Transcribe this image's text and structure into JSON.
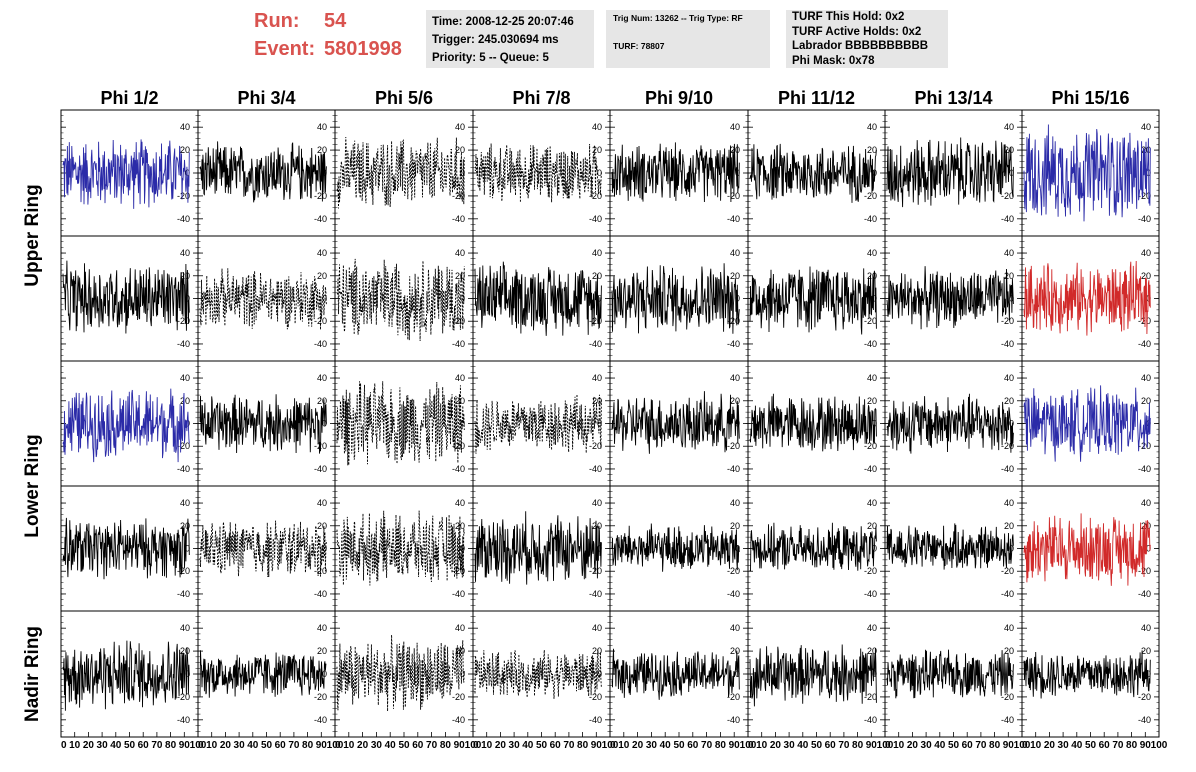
{
  "header": {
    "run_label": "Run:",
    "run_value": "54",
    "event_label": "Event:",
    "event_value": "5801998",
    "accent_color": "#d9534f"
  },
  "info": {
    "time_box": [
      "Time: 2008-12-25 20:07:46",
      "Trigger: 245.030694 ms",
      "Priority: 5 -- Queue: 5"
    ],
    "trig_box": [
      "Trig Num: 13262 -- Trig Type: RF",
      "TURF: 78807"
    ],
    "turf_box": [
      "TURF This Hold: 0x2",
      "TURF Active Holds: 0x2",
      "Labrador BBBBBBBBBB",
      "Phi Mask: 0x78"
    ]
  },
  "chart_data": {
    "type": "line",
    "columns": [
      "Phi 1/2",
      "Phi 3/4",
      "Phi 5/6",
      "Phi 7/8",
      "Phi 9/10",
      "Phi 11/12",
      "Phi 13/14",
      "Phi 15/16"
    ],
    "rows": [
      "Upper Ring",
      "Upper Ring",
      "Lower Ring",
      "Lower Ring",
      "Nadir Ring"
    ],
    "row_labels": [
      {
        "text": "Upper Ring",
        "rows": [
          0,
          1
        ]
      },
      {
        "text": "Lower Ring",
        "rows": [
          2,
          3
        ]
      },
      {
        "text": "Nadir Ring",
        "rows": [
          4
        ]
      }
    ],
    "y_ticks": [
      "40",
      "20",
      "0",
      "-20",
      "-40"
    ],
    "y_tick_values": [
      40,
      20,
      0,
      -20,
      -40
    ],
    "ylim": [
      -55,
      55
    ],
    "x_tick_labels": [
      "0",
      "10",
      "20",
      "30",
      "40",
      "50",
      "60",
      "70",
      "80",
      "90",
      "100"
    ],
    "xlim": [
      0,
      100
    ],
    "trace_styles": {
      "colors": {
        "black": "#000000",
        "blue": "#2b2ba8",
        "red": "#d12a2a"
      },
      "cells": [
        [
          "blue",
          "black",
          "dashed",
          "dashed",
          "black",
          "black",
          "black",
          "blue"
        ],
        [
          "black",
          "dashed",
          "dashed",
          "black",
          "black",
          "black",
          "black",
          "red"
        ],
        [
          "blue",
          "black",
          "dashed",
          "dashed",
          "black",
          "black",
          "black",
          "blue"
        ],
        [
          "black",
          "dashed",
          "dashed",
          "black",
          "black",
          "black",
          "black",
          "red"
        ],
        [
          "black",
          "black",
          "dashed",
          "dashed",
          "black",
          "black",
          "black",
          "black"
        ]
      ]
    },
    "amplitude": [
      [
        30,
        25,
        30,
        25,
        25,
        25,
        30,
        40
      ],
      [
        30,
        25,
        35,
        30,
        30,
        30,
        25,
        30
      ],
      [
        30,
        25,
        35,
        25,
        25,
        25,
        25,
        30
      ],
      [
        25,
        25,
        30,
        30,
        20,
        20,
        20,
        30
      ],
      [
        30,
        20,
        30,
        20,
        20,
        25,
        20,
        20
      ]
    ],
    "grid": false
  }
}
